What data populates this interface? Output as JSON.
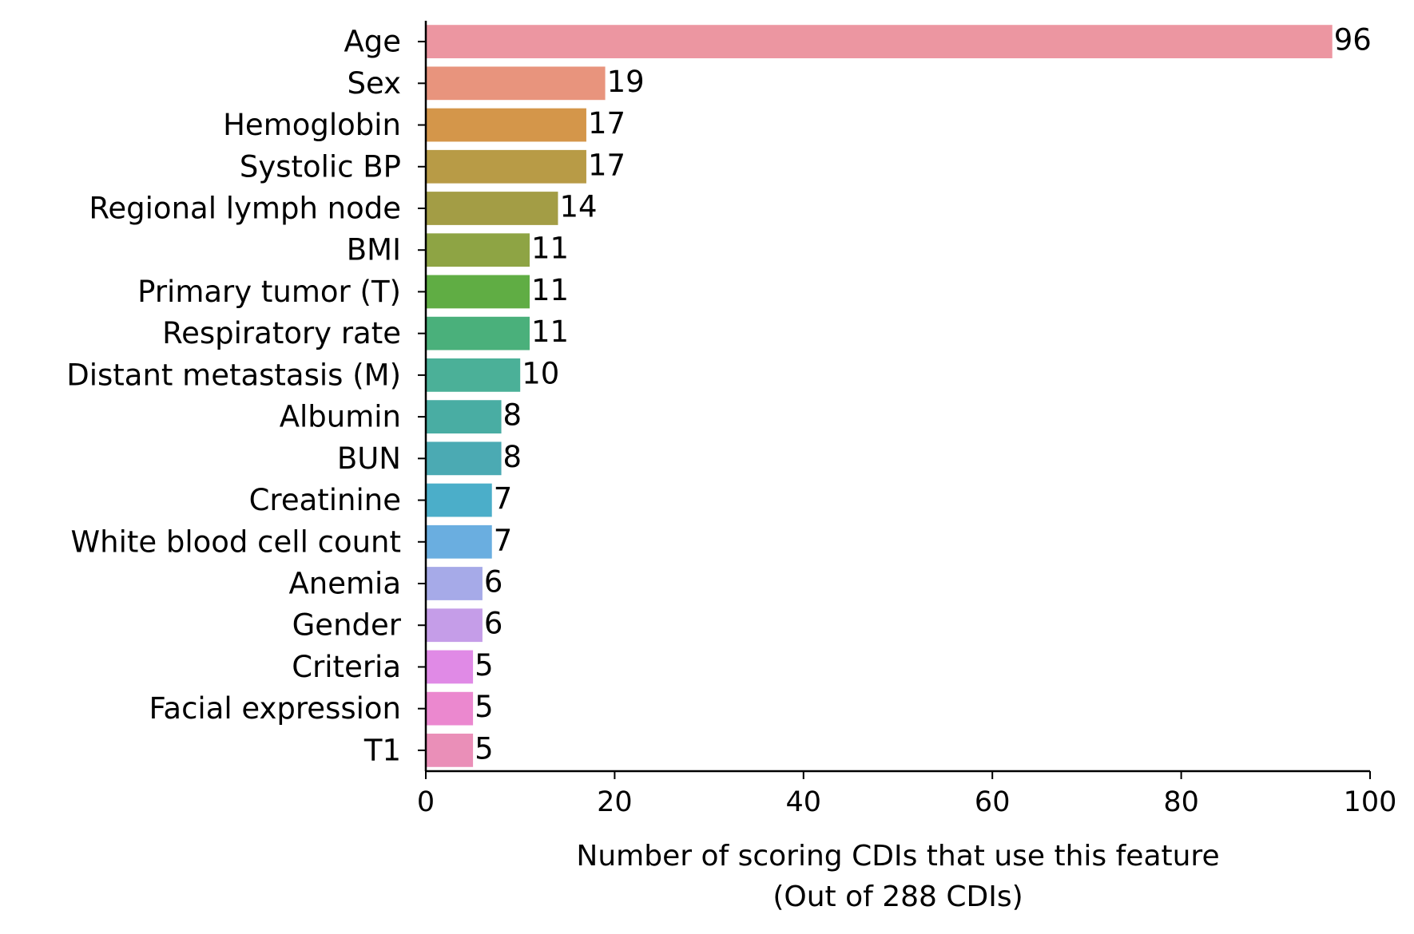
{
  "chart_data": {
    "type": "bar",
    "orientation": "horizontal",
    "categories": [
      "Age",
      "Sex",
      "Hemoglobin",
      "Systolic BP",
      "Regional lymph node",
      "BMI",
      "Primary tumor (T)",
      "Respiratory rate",
      "Distant metastasis (M)",
      "Albumin",
      "BUN",
      "Creatinine",
      "White blood cell count",
      "Anemia",
      "Gender",
      "Criteria",
      "Facial expression",
      "T1"
    ],
    "values": [
      96,
      19,
      17,
      17,
      14,
      11,
      11,
      11,
      10,
      8,
      8,
      7,
      7,
      6,
      6,
      5,
      5,
      5
    ],
    "data_labels": [
      "96",
      "19",
      "17",
      "17",
      "14",
      "11",
      "11",
      "11",
      "10",
      "8",
      "8",
      "7",
      "7",
      "6",
      "6",
      "5",
      "5",
      "5"
    ],
    "colors": [
      "#ec96a1",
      "#e8947d",
      "#d4964a",
      "#b89b46",
      "#a39d45",
      "#8ea444",
      "#60ad44",
      "#4ab07b",
      "#4bb098",
      "#49ada3",
      "#4baab3",
      "#4baec9",
      "#6aaee0",
      "#a6aae8",
      "#c59de8",
      "#e08ae6",
      "#eb88cf",
      "#ea8fb8"
    ],
    "xlabel": "Number of scoring CDIs that use this feature",
    "xlabel_line2": "(Out of 288 CDIs)",
    "ylabel": "",
    "xlim": [
      0,
      100
    ],
    "xticks": [
      0,
      20,
      40,
      60,
      80,
      100
    ],
    "xtick_labels": [
      "0",
      "20",
      "40",
      "60",
      "80",
      "100"
    ],
    "grid": false,
    "legend": "none"
  }
}
